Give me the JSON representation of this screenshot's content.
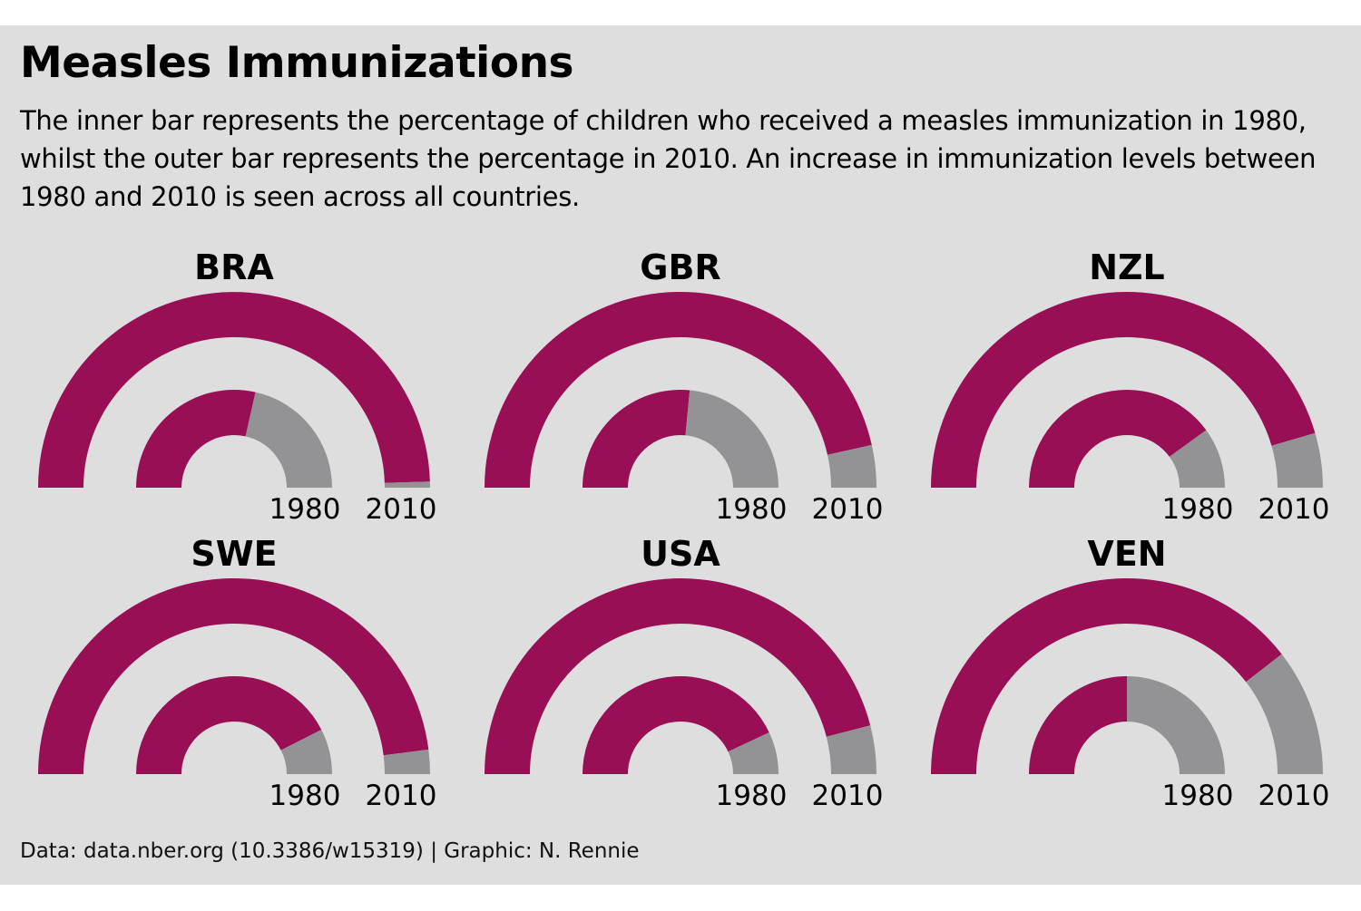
{
  "title": "Measles Immunizations",
  "subtitle": "The inner bar represents the percentage of children who received a measles immunization in 1980, whilst the outer bar represents the percentage in 2010. An increase in immunization levels between 1980 and 2010 is seen across all countries.",
  "caption": "Data: data.nber.org (10.3386/w15319) | Graphic: N. Rennie",
  "colors": {
    "immunized": "#990f56",
    "remainder": "#939396",
    "background": "#dedede"
  },
  "chart_data": {
    "type": "radial-bar",
    "unit": "percent",
    "ylim": [
      0,
      100
    ],
    "inner_label": "1980",
    "outer_label": "2010",
    "countries": [
      {
        "code": "BRA",
        "y1980": 57,
        "y2010": 99
      },
      {
        "code": "GBR",
        "y1980": 53,
        "y2010": 93
      },
      {
        "code": "NZL",
        "y1980": 80,
        "y2010": 91
      },
      {
        "code": "SWE",
        "y1980": 85,
        "y2010": 96
      },
      {
        "code": "USA",
        "y1980": 86,
        "y2010": 92
      },
      {
        "code": "VEN",
        "y1980": 50,
        "y2010": 79
      }
    ]
  }
}
